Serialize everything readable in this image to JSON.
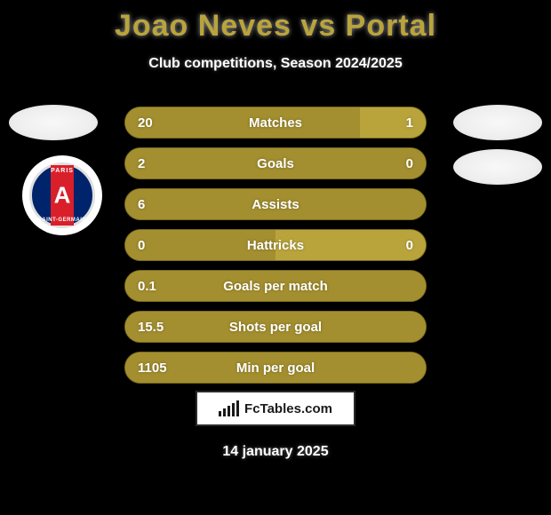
{
  "background_color": "#000000",
  "text_color": "#ffffff",
  "title_color": "#b9a43c",
  "title": "Joao Neves vs Portal",
  "title_fontsize": 34,
  "subtitle": "Club competitions, Season 2024/2025",
  "subtitle_fontsize": 16,
  "left_club_name": "PSG",
  "psg_colors": {
    "blue": "#00246b",
    "red": "#d91f2a",
    "white": "#ffffff"
  },
  "bar_track_color": "#b9a43c",
  "bar_highlight_color": "#a38f2f",
  "bar_border_color": "#7a6a20",
  "bar_text_color": "#ffffff",
  "bars": [
    {
      "label": "Matches",
      "left": "20",
      "right": "1",
      "left_pct": 78,
      "right_pct": 22,
      "show_right": true
    },
    {
      "label": "Goals",
      "left": "2",
      "right": "0",
      "left_pct": 100,
      "right_pct": 0,
      "show_right": true
    },
    {
      "label": "Assists",
      "left": "6",
      "right": "",
      "left_pct": 100,
      "right_pct": 0,
      "show_right": false
    },
    {
      "label": "Hattricks",
      "left": "0",
      "right": "0",
      "left_pct": 50,
      "right_pct": 50,
      "show_right": true
    },
    {
      "label": "Goals per match",
      "left": "0.1",
      "right": "",
      "left_pct": 100,
      "right_pct": 0,
      "show_right": false
    },
    {
      "label": "Shots per goal",
      "left": "15.5",
      "right": "",
      "left_pct": 100,
      "right_pct": 0,
      "show_right": false
    },
    {
      "label": "Min per goal",
      "left": "1105",
      "right": "",
      "left_pct": 100,
      "right_pct": 0,
      "show_right": false
    }
  ],
  "branding": {
    "text": "FcTables.com",
    "border_color": "#2a2a2a",
    "text_color": "#1a1a1a",
    "bg_color": "#ffffff"
  },
  "date": "14 january 2025"
}
